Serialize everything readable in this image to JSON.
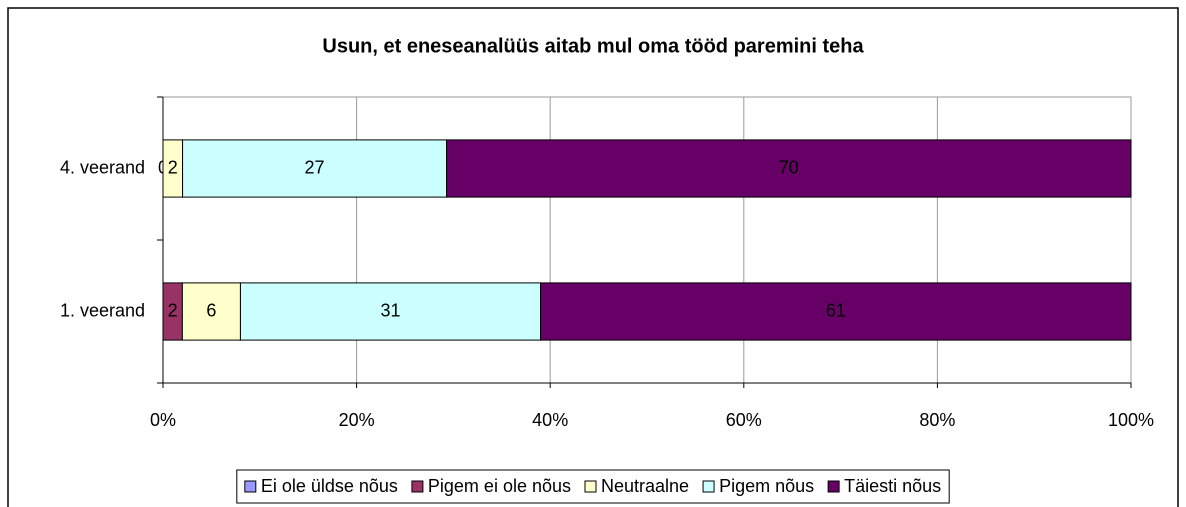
{
  "chart_data": {
    "type": "stacked_bar_100",
    "orientation": "horizontal",
    "title": "Usun, et eneseanalüüs aitab mul oma tööd paremini teha",
    "categories": [
      "4. veerand",
      "1. veerand"
    ],
    "series": [
      {
        "name": "Ei ole üldse nõus",
        "color": "#9999ff",
        "values": [
          null,
          null
        ]
      },
      {
        "name": "Pigem ei ole nõus",
        "color": "#993366",
        "values": [
          0,
          2
        ]
      },
      {
        "name": "Neutraalne",
        "color": "#ffffcc",
        "values": [
          2,
          6
        ]
      },
      {
        "name": "Pigem nõus",
        "color": "#ccffff",
        "values": [
          27,
          31
        ]
      },
      {
        "name": "Täiesti nõus",
        "color": "#660066",
        "values": [
          70,
          61
        ]
      }
    ],
    "xlim": [
      0,
      100
    ],
    "xticks": [
      {
        "value": 0,
        "label": "0%"
      },
      {
        "value": 20,
        "label": "20%"
      },
      {
        "value": 40,
        "label": "40%"
      },
      {
        "value": 60,
        "label": "60%"
      },
      {
        "value": 80,
        "label": "80%"
      },
      {
        "value": 100,
        "label": "100%"
      }
    ],
    "grid": true,
    "legend": "bottom"
  }
}
